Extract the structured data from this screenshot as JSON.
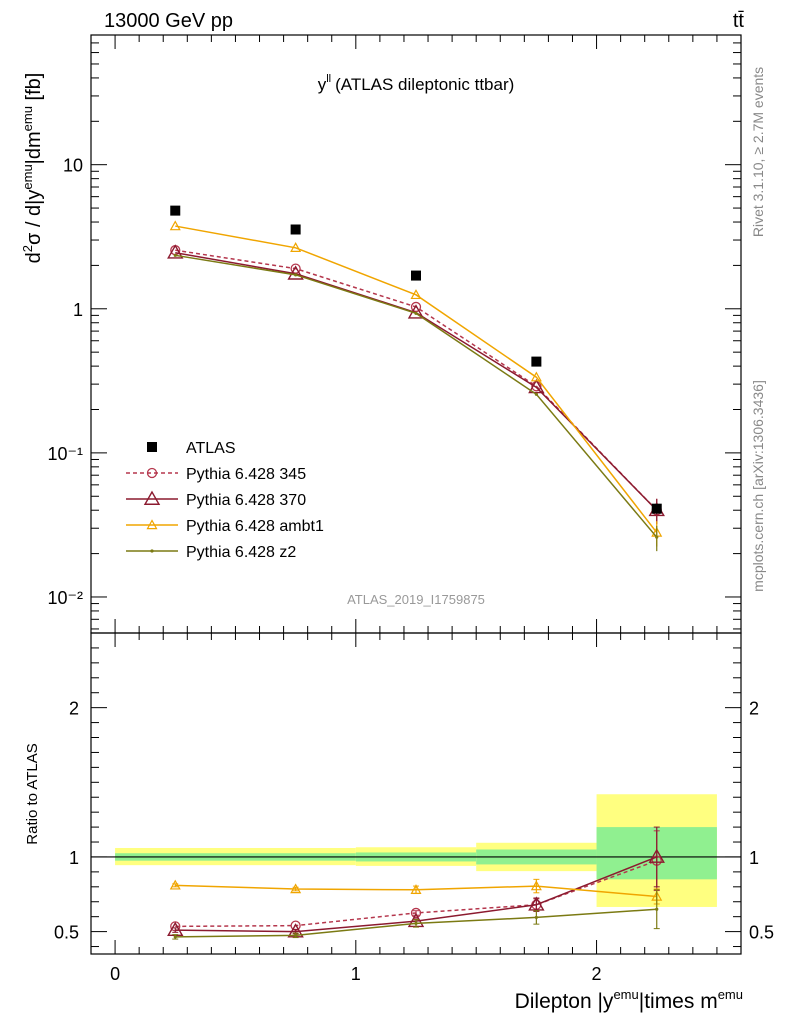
{
  "header": {
    "left": "13000 GeV pp",
    "right": "tt̄"
  },
  "side": {
    "rivet": "Rivet 3.1.10, ≥ 2.7M events",
    "mcplots": "mcplots.cern.ch [arXiv:1306.3436]"
  },
  "chart_data": {
    "type": "line",
    "title": "(ATLAS dileptonic ttbar)",
    "title_symbol": "y",
    "title_sup": "ll",
    "analysis_id": "ATLAS_2019_I1759875",
    "xlabel": {
      "pre": "Dilepton |y",
      "sup1": "emu",
      "mid": "|times m",
      "sup2": "emu"
    },
    "ylabel": {
      "p1": "d",
      "s1": "2",
      "p2": "σ / d|y",
      "s2": "emu",
      "p3": "|dm",
      "s3": "emu",
      "p4": " [fb]"
    },
    "ratio_ylabel": "Ratio to ATLAS",
    "x_ticks": [
      "0",
      "1",
      "2"
    ],
    "y_ticks": [
      "10⁻²",
      "10⁻¹",
      "1",
      "10"
    ],
    "ratio_ticks": [
      "0.5",
      "1",
      "2"
    ],
    "xlim": [
      -0.1,
      2.6
    ],
    "ylim_log10": [
      -2.25,
      1.9
    ],
    "ratio_ylim": [
      0.35,
      2.5
    ],
    "bin_edges": [
      0,
      1,
      1.5,
      2,
      2.5
    ],
    "x": [
      0.25,
      0.75,
      1.25,
      1.75,
      2.25
    ],
    "data": {
      "name": "ATLAS",
      "x": [
        0.25,
        0.75,
        1.25,
        1.75,
        2.25
      ],
      "values": [
        4.8,
        3.55,
        1.7,
        0.43,
        0.041
      ]
    },
    "bands": [
      {
        "x0": 0,
        "x1": 1,
        "inner": [
          0.975,
          1.025
        ],
        "outer": [
          0.945,
          1.06
        ]
      },
      {
        "x0": 1,
        "x1": 1.5,
        "inner": [
          0.97,
          1.03
        ],
        "outer": [
          0.94,
          1.065
        ]
      },
      {
        "x0": 1.5,
        "x1": 2,
        "inner": [
          0.95,
          1.05
        ],
        "outer": [
          0.905,
          1.095
        ]
      },
      {
        "x0": 2,
        "x1": 2.5,
        "inner": [
          0.85,
          1.2
        ],
        "outer": [
          0.665,
          1.42
        ]
      }
    ],
    "series": [
      {
        "name": "Pythia 6.428 345",
        "color": "#b5374d",
        "dash": "4,3",
        "marker": "circle",
        "values": [
          2.55,
          1.9,
          1.03,
          0.29,
          0.04
        ],
        "ratio": [
          0.535,
          0.54,
          0.625,
          0.68,
          0.975
        ],
        "ratio_err": [
          0,
          0,
          0.015,
          0.04,
          0.2
        ]
      },
      {
        "name": "Pythia 6.428 370",
        "color": "#8b1a2f",
        "dash": "",
        "marker": "triangle-big",
        "values": [
          2.45,
          1.75,
          0.94,
          0.285,
          0.04
        ],
        "ratio": [
          0.51,
          0.5,
          0.57,
          0.68,
          1.0
        ],
        "ratio_err": [
          0.015,
          0.015,
          0.015,
          0.045,
          0.2
        ]
      },
      {
        "name": "Pythia 6.428 ambt1",
        "color": "#f0a500",
        "dash": "",
        "marker": "triangle",
        "values": [
          3.75,
          2.65,
          1.25,
          0.335,
          0.028
        ],
        "ratio": [
          0.81,
          0.785,
          0.78,
          0.805,
          0.735
        ],
        "ratio_err": [
          0.01,
          0.012,
          0.025,
          0.045,
          0.05
        ]
      },
      {
        "name": "Pythia 6.428 z2",
        "color": "#7b7a13",
        "dash": "",
        "marker": "dot",
        "values": [
          2.35,
          1.72,
          0.93,
          0.255,
          0.026
        ],
        "ratio": [
          0.465,
          0.475,
          0.555,
          0.595,
          0.65
        ],
        "ratio_err": [
          0.015,
          0.015,
          0.025,
          0.045,
          0.13
        ]
      }
    ]
  }
}
